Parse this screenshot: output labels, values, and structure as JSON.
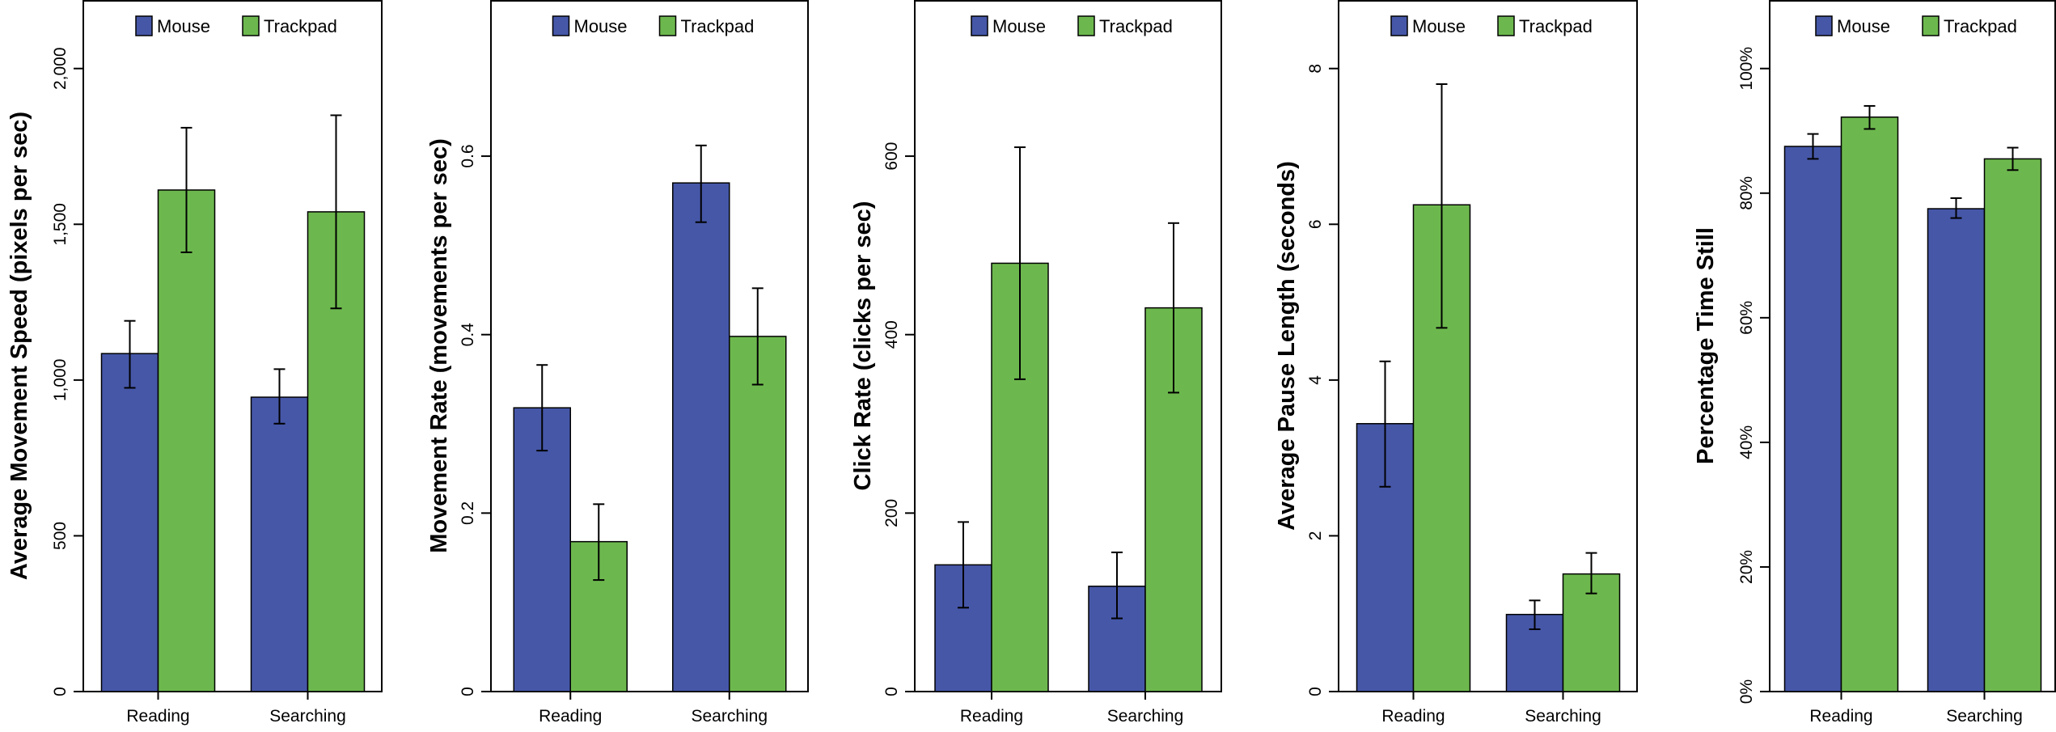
{
  "colors": {
    "mouse": "#4657a8",
    "trackpad": "#6db84e",
    "axis": "#000000"
  },
  "chart_data": [
    {
      "type": "bar",
      "title": "",
      "xlabel": "",
      "ylabel": "Average Movement Speed (pixels per sec)",
      "categories": [
        "Reading",
        "Searching"
      ],
      "series": [
        {
          "name": "Mouse",
          "values": [
            1085,
            945
          ],
          "err_low": [
            975,
            860
          ],
          "err_high": [
            1190,
            1035
          ]
        },
        {
          "name": "Trackpad",
          "values": [
            1610,
            1540
          ],
          "err_low": [
            1410,
            1230
          ],
          "err_high": [
            1810,
            1850
          ]
        }
      ],
      "ylim": [
        0,
        2220
      ],
      "yticks": [
        0,
        500,
        1000,
        1500,
        2000
      ],
      "ytick_labels": [
        "0",
        "500",
        "1,000",
        "1,500",
        "2,000"
      ],
      "legend": "top"
    },
    {
      "type": "bar",
      "title": "",
      "xlabel": "",
      "ylabel": "Movement Rate (movements per sec)",
      "categories": [
        "Reading",
        "Searching"
      ],
      "series": [
        {
          "name": "Mouse",
          "values": [
            0.318,
            0.57
          ],
          "err_low": [
            0.27,
            0.526
          ],
          "err_high": [
            0.366,
            0.612
          ]
        },
        {
          "name": "Trackpad",
          "values": [
            0.168,
            0.398
          ],
          "err_low": [
            0.125,
            0.344
          ],
          "err_high": [
            0.21,
            0.452
          ]
        }
      ],
      "ylim": [
        0,
        0.775
      ],
      "yticks": [
        0,
        0.2,
        0.4,
        0.6
      ],
      "ytick_labels": [
        "0",
        "0.2",
        "0.4",
        "0.6"
      ],
      "legend": "top"
    },
    {
      "type": "bar",
      "title": "",
      "xlabel": "",
      "ylabel": "Click Rate (clicks per sec)",
      "categories": [
        "Reading",
        "Searching"
      ],
      "series": [
        {
          "name": "Mouse",
          "values": [
            142,
            118
          ],
          "err_low": [
            94,
            82
          ],
          "err_high": [
            190,
            156
          ]
        },
        {
          "name": "Trackpad",
          "values": [
            480,
            430
          ],
          "err_low": [
            350,
            335
          ],
          "err_high": [
            610,
            525
          ]
        }
      ],
      "ylim": [
        0,
        775
      ],
      "yticks": [
        0,
        200,
        400,
        600
      ],
      "ytick_labels": [
        "0",
        "200",
        "400",
        "600"
      ],
      "legend": "top"
    },
    {
      "type": "bar",
      "title": "",
      "xlabel": "",
      "ylabel": "Average Pause Length (seconds)",
      "categories": [
        "Reading",
        "Searching"
      ],
      "series": [
        {
          "name": "Mouse",
          "values": [
            3.44,
            0.99
          ],
          "err_low": [
            2.63,
            0.8
          ],
          "err_high": [
            4.24,
            1.17
          ]
        },
        {
          "name": "Trackpad",
          "values": [
            6.25,
            1.51
          ],
          "err_low": [
            4.67,
            1.26
          ],
          "err_high": [
            7.8,
            1.78
          ]
        }
      ],
      "ylim": [
        0,
        8.88
      ],
      "yticks": [
        0,
        2,
        4,
        6,
        8
      ],
      "ytick_labels": [
        "0",
        "2",
        "4",
        "6",
        "8"
      ],
      "legend": "top"
    },
    {
      "type": "bar",
      "title": "",
      "xlabel": "",
      "ylabel": "Percentage Time Still",
      "categories": [
        "Reading",
        "Searching"
      ],
      "series": [
        {
          "name": "Mouse",
          "values": [
            87.5,
            77.5
          ],
          "err_low": [
            85.5,
            76.0
          ],
          "err_high": [
            89.5,
            79.2
          ]
        },
        {
          "name": "Trackpad",
          "values": [
            92.2,
            85.5
          ],
          "err_low": [
            90.3,
            83.7
          ],
          "err_high": [
            94.0,
            87.3
          ]
        }
      ],
      "ylim": [
        0,
        111
      ],
      "yticks": [
        0,
        20,
        40,
        60,
        80,
        100
      ],
      "ytick_labels": [
        "0%",
        "20%",
        "40%",
        "60%",
        "80%",
        "100%"
      ],
      "legend": "top"
    }
  ]
}
